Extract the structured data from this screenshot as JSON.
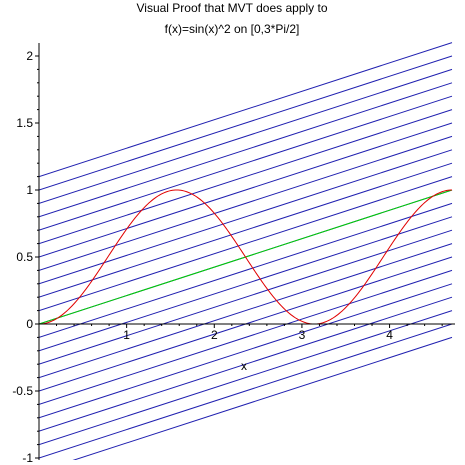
{
  "chart_data": {
    "type": "line",
    "title": [
      "Visual Proof that MVT does apply to",
      "f(x)=sin(x)^2 on [0,3*Pi/2]"
    ],
    "xlabel": "x",
    "ylabel": "",
    "xlim": [
      0,
      4.712389
    ],
    "ylim": [
      -1,
      2
    ],
    "x_ticks": [
      1,
      2,
      3,
      4
    ],
    "y_ticks": [
      -1,
      -0.5,
      0,
      0.5,
      1,
      1.5,
      2
    ],
    "x_tick_labels": [
      "1",
      "2",
      "3",
      "4"
    ],
    "y_tick_labels": [
      "-1",
      "-0.5",
      "0",
      "0.5",
      "1",
      "1.5",
      "2"
    ],
    "series": [
      {
        "kind": "function",
        "expression": "sin(x)^2",
        "color": "#e00000"
      },
      {
        "kind": "secant",
        "points": [
          [
            0,
            0
          ],
          [
            4.712389,
            1
          ]
        ],
        "color": "#00d000"
      },
      {
        "kind": "parallel_lines",
        "slope": 0.2122066,
        "intercepts": [
          -1.1,
          -1.0,
          -0.9,
          -0.8,
          -0.7,
          -0.6,
          -0.5,
          -0.4,
          -0.3,
          -0.2,
          -0.1,
          0,
          0.1,
          0.2,
          0.3,
          0.4,
          0.5,
          0.6,
          0.7,
          0.8,
          0.9,
          1.0,
          1.1
        ],
        "color": "#2020b0"
      }
    ],
    "grid": false,
    "legend": "none"
  }
}
